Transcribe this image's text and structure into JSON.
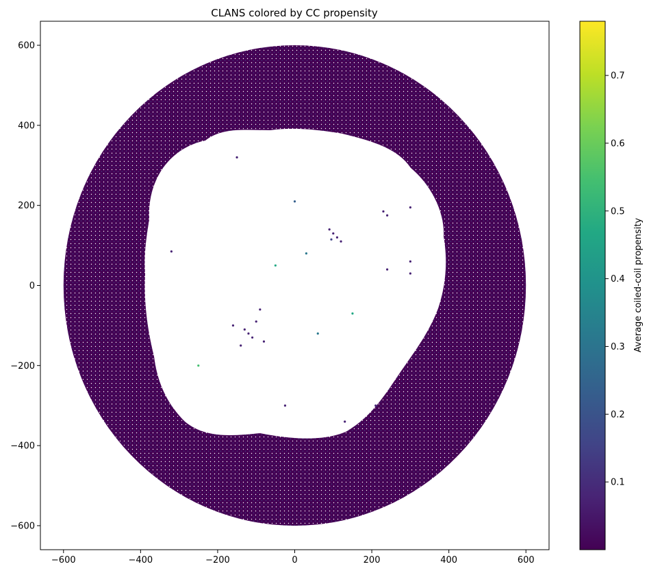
{
  "chart_data": {
    "type": "scatter",
    "title": "CLANS colored by CC propensity",
    "xlabel": "",
    "ylabel": "",
    "xlim": [
      -660,
      660
    ],
    "ylim": [
      -660,
      660
    ],
    "xticks": [
      -600,
      -400,
      -200,
      0,
      200,
      400,
      600
    ],
    "yticks": [
      -600,
      -400,
      -200,
      0,
      200,
      400,
      600
    ],
    "xtick_labels": [
      "−600",
      "−400",
      "−200",
      "0",
      "200",
      "400",
      "600"
    ],
    "ytick_labels": [
      "−600",
      "−400",
      "−200",
      "0",
      "200",
      "400",
      "600"
    ],
    "grid": false,
    "colormap": "viridis",
    "colorbar": {
      "label": "Average coiled-coil propensity",
      "range": [
        0.0,
        0.78
      ],
      "ticks": [
        0.1,
        0.2,
        0.3,
        0.4,
        0.5,
        0.6,
        0.7
      ],
      "tick_labels": [
        "0.1",
        "0.2",
        "0.3",
        "0.4",
        "0.5",
        "0.6",
        "0.7"
      ]
    },
    "outer_ring": {
      "center": [
        0,
        0
      ],
      "radius": 600
    },
    "points": [
      {
        "x": -120,
        "y": -120,
        "c": 0.05
      },
      {
        "x": -130,
        "y": -110,
        "c": 0.08
      },
      {
        "x": -110,
        "y": -130,
        "c": 0.04
      },
      {
        "x": -100,
        "y": -90,
        "c": 0.06
      },
      {
        "x": -140,
        "y": -150,
        "c": 0.05
      },
      {
        "x": -90,
        "y": -60,
        "c": 0.1
      },
      {
        "x": -160,
        "y": -100,
        "c": 0.07
      },
      {
        "x": -80,
        "y": -140,
        "c": 0.05
      },
      {
        "x": 100,
        "y": 130,
        "c": 0.05
      },
      {
        "x": 110,
        "y": 120,
        "c": 0.09
      },
      {
        "x": 90,
        "y": 140,
        "c": 0.06
      },
      {
        "x": 120,
        "y": 110,
        "c": 0.04
      },
      {
        "x": 95,
        "y": 115,
        "c": 0.12
      },
      {
        "x": 230,
        "y": 185,
        "c": 0.05
      },
      {
        "x": 240,
        "y": 175,
        "c": 0.06
      },
      {
        "x": 300,
        "y": 195,
        "c": 0.05
      },
      {
        "x": 300,
        "y": 60,
        "c": 0.05
      },
      {
        "x": 240,
        "y": 40,
        "c": 0.05
      },
      {
        "x": 300,
        "y": 30,
        "c": 0.05
      },
      {
        "x": -320,
        "y": 85,
        "c": 0.05
      },
      {
        "x": -150,
        "y": 320,
        "c": 0.05
      },
      {
        "x": 130,
        "y": -340,
        "c": 0.05
      },
      {
        "x": 210,
        "y": -300,
        "c": 0.05
      },
      {
        "x": -25,
        "y": -300,
        "c": 0.06
      },
      {
        "x": 30,
        "y": 80,
        "c": 0.3
      },
      {
        "x": -50,
        "y": 50,
        "c": 0.45
      },
      {
        "x": 150,
        "y": -70,
        "c": 0.5
      },
      {
        "x": -250,
        "y": -200,
        "c": 0.55
      },
      {
        "x": 60,
        "y": -120,
        "c": 0.35
      },
      {
        "x": 0,
        "y": 210,
        "c": 0.2
      }
    ]
  }
}
